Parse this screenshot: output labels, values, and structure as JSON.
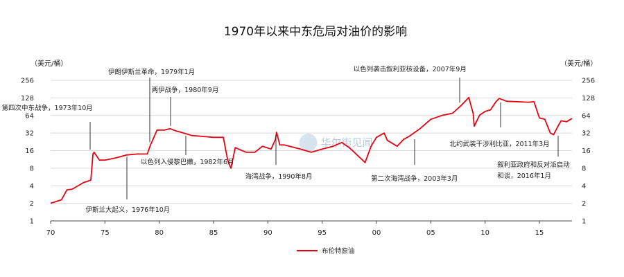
{
  "chart_data": {
    "type": "line",
    "title": "1970年以来中东危局对油价的影响",
    "y_unit_left": "（美元/桶）",
    "y_unit_right": "（美元/桶）",
    "yscale": "log2",
    "ylim": [
      1,
      256
    ],
    "yticks": [
      "1",
      "2",
      "4",
      "8",
      "16",
      "32",
      "64",
      "128",
      "256"
    ],
    "xlim": [
      1970,
      2018
    ],
    "xticks": [
      {
        "year": 1970,
        "label": "70"
      },
      {
        "year": 1975,
        "label": "75"
      },
      {
        "year": 1980,
        "label": "80"
      },
      {
        "year": 1985,
        "label": "85"
      },
      {
        "year": 1990,
        "label": "90"
      },
      {
        "year": 1995,
        "label": "95"
      },
      {
        "year": 2000,
        "label": "00"
      },
      {
        "year": 2005,
        "label": "05"
      },
      {
        "year": 2010,
        "label": "10"
      },
      {
        "year": 2015,
        "label": "15"
      }
    ],
    "grid": true,
    "legend_position": "bottom-center",
    "series": [
      {
        "name": "布伦特原油",
        "color": "#e60012",
        "x": [
          1970.0,
          1971.0,
          1971.5,
          1972.0,
          1973.0,
          1973.7,
          1973.9,
          1974.0,
          1974.5,
          1975.0,
          1976.0,
          1977.0,
          1978.0,
          1978.9,
          1979.2,
          1979.8,
          1980.5,
          1981.0,
          1981.5,
          1982.0,
          1983.0,
          1984.0,
          1985.0,
          1985.9,
          1986.3,
          1986.6,
          1987.0,
          1988.0,
          1988.8,
          1989.5,
          1990.3,
          1990.7,
          1990.8,
          1991.1,
          1991.5,
          1992.0,
          1993.0,
          1994.0,
          1995.0,
          1996.0,
          1996.8,
          1997.5,
          1998.5,
          1998.95,
          1999.5,
          2000.0,
          2000.7,
          2001.0,
          2001.9,
          2002.5,
          2003.0,
          2004.0,
          2005.0,
          2006.0,
          2007.0,
          2007.8,
          2008.5,
          2008.9,
          2009.0,
          2009.5,
          2010.0,
          2010.5,
          2011.0,
          2011.3,
          2012.0,
          2013.0,
          2014.0,
          2014.5,
          2015.0,
          2015.5,
          2016.0,
          2016.3,
          2016.8,
          2017.0,
          2017.5,
          2018.0
        ],
        "y": [
          2.0,
          2.3,
          3.4,
          3.5,
          4.5,
          5.0,
          14,
          15,
          11,
          11,
          12,
          13.5,
          14,
          14,
          20,
          36,
          36,
          38,
          35,
          33,
          29,
          28,
          27,
          27,
          11,
          8,
          18,
          15,
          15,
          19,
          17,
          25,
          33,
          20,
          20,
          19,
          17,
          15,
          17,
          19,
          22,
          18,
          12,
          10,
          19,
          27,
          32,
          24,
          19,
          25,
          28,
          38,
          55,
          64,
          70,
          95,
          130,
          70,
          42,
          65,
          75,
          80,
          110,
          125,
          112,
          110,
          108,
          110,
          58,
          55,
          32,
          30,
          45,
          52,
          50,
          57
        ]
      }
    ],
    "annotations": [
      {
        "text": "第四次中东战争，1973年10月",
        "x": 1973.8,
        "y": 15
      },
      {
        "text": "伊斯兰大起义，1976年10月",
        "x": 1976.8,
        "y": 14
      },
      {
        "text": "伊朗伊斯兰革命，1979年1月",
        "x": 1979.0,
        "y": 20
      },
      {
        "text": "两伊战争，1980年9月",
        "x": 1980.7,
        "y": 38
      },
      {
        "text": "以色列入侵黎巴嫩，1982年6月",
        "x": 1982.5,
        "y": 32
      },
      {
        "text": "海湾战争，1990年8月",
        "x": 1990.6,
        "y": 33
      },
      {
        "text": "以色列袭击叙利亚核设备，2007年9月",
        "x": 2007.7,
        "y": 95
      },
      {
        "text": "第二次海湾战争，2003年3月",
        "x": 2003.2,
        "y": 28
      },
      {
        "text": "北约武装干涉利比亚，2011年3月",
        "x": 2011.2,
        "y": 120
      },
      {
        "text": "叙利亚政府和反对派启动",
        "x": 2016.1,
        "y": 32
      },
      {
        "text": "和谈，2016年1月",
        "x": 2016.1,
        "y": 32
      }
    ],
    "watermark": "华尔街见闻"
  }
}
